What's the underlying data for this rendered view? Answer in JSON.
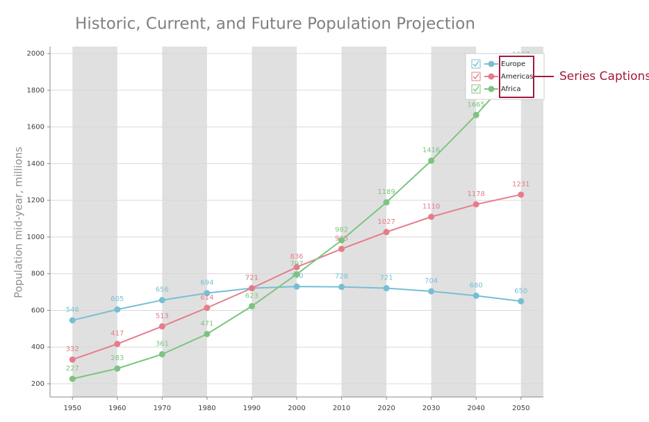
{
  "chart_data": {
    "type": "line",
    "title": "Historic, Current, and Future Population Projection",
    "y_label": "Population mid-year, millions",
    "x": [
      1950,
      1960,
      1970,
      1980,
      1990,
      2000,
      2010,
      2020,
      2030,
      2040,
      2050
    ],
    "series": [
      {
        "name": "Europe",
        "color": "#76bfd4",
        "values": [
          546,
          605,
          656,
          694,
          721,
          730,
          728,
          721,
          704,
          680,
          650
        ]
      },
      {
        "name": "Americas",
        "color": "#e67c8a",
        "values": [
          332,
          417,
          513,
          614,
          721,
          836,
          935,
          1027,
          1110,
          1178,
          1231
        ]
      },
      {
        "name": "Africa",
        "color": "#7bc47f",
        "values": [
          227,
          283,
          361,
          471,
          623,
          797,
          982,
          1189,
          1416,
          1665,
          1937
        ]
      }
    ],
    "xlim": [
      1945,
      2055
    ],
    "xticks": [
      1950,
      1960,
      1970,
      1980,
      1990,
      2000,
      2010,
      2020,
      2030,
      2040,
      2050
    ],
    "ylim": [
      128,
      2038
    ],
    "yticks": [
      200,
      400,
      600,
      800,
      1000,
      1200,
      1400,
      1600,
      1800,
      2000
    ],
    "grid": true,
    "legend": "top-right",
    "annotation": "Series Captions"
  }
}
